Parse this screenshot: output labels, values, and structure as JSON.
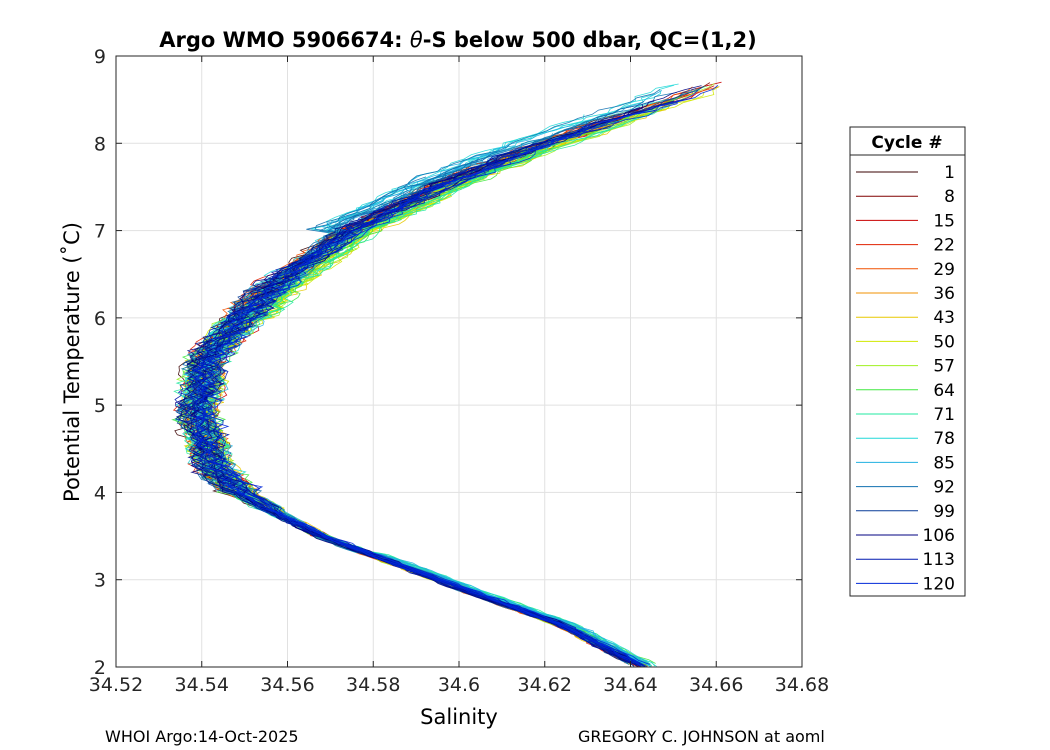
{
  "chart_data": {
    "type": "line",
    "title_prefix": "Argo WMO 5906674: ",
    "title_theta": "θ",
    "title_suffix": "-S below 500 dbar,  QC=(1,2)",
    "xlabel": "Salinity",
    "ylabel": "Potential Temperature (˚C)",
    "xlim": [
      34.52,
      34.68
    ],
    "ylim": [
      2,
      9
    ],
    "xticks": [
      34.52,
      34.54,
      34.56,
      34.58,
      34.6,
      34.62,
      34.64,
      34.66,
      34.68
    ],
    "xtick_labels": [
      "34.52",
      "34.54",
      "34.56",
      "34.58",
      "34.6",
      "34.62",
      "34.64",
      "34.66",
      "34.68"
    ],
    "yticks": [
      2,
      3,
      4,
      5,
      6,
      7,
      8,
      9
    ],
    "ytick_labels": [
      "2",
      "3",
      "4",
      "5",
      "6",
      "7",
      "8",
      "9"
    ],
    "grid": true,
    "legend_title": "Cycle #",
    "legend_position": "right",
    "legend_entries": [
      {
        "label": "1",
        "color": "#3a0000"
      },
      {
        "label": "8",
        "color": "#800000"
      },
      {
        "label": "15",
        "color": "#c80000"
      },
      {
        "label": "22",
        "color": "#e02000"
      },
      {
        "label": "29",
        "color": "#f05000"
      },
      {
        "label": "36",
        "color": "#f09000"
      },
      {
        "label": "43",
        "color": "#e8c800"
      },
      {
        "label": "50",
        "color": "#d0e800"
      },
      {
        "label": "57",
        "color": "#a0f020"
      },
      {
        "label": "64",
        "color": "#40e840"
      },
      {
        "label": "71",
        "color": "#20e8a0"
      },
      {
        "label": "78",
        "color": "#20d8d8"
      },
      {
        "label": "85",
        "color": "#20b0e0"
      },
      {
        "label": "92",
        "color": "#1070b0"
      },
      {
        "label": "99",
        "color": "#083c98"
      },
      {
        "label": "106",
        "color": "#000080"
      },
      {
        "label": "113",
        "color": "#0018b0"
      },
      {
        "label": "120",
        "color": "#0028d8"
      }
    ],
    "series_description": "theta-S profiles for each cycle below 500 dbar",
    "mean_curve": {
      "theta": [
        2.0,
        2.5,
        3.0,
        3.5,
        3.8,
        4.0,
        4.3,
        4.5,
        5.0,
        5.5,
        6.0,
        6.5,
        7.0,
        7.5,
        8.0,
        8.5,
        8.7
      ],
      "salinity": [
        34.643,
        34.623,
        34.595,
        34.568,
        34.556,
        34.549,
        34.543,
        34.541,
        34.539,
        34.541,
        34.549,
        34.56,
        34.575,
        34.595,
        34.62,
        34.65,
        34.66
      ]
    }
  },
  "footer": {
    "left": "WHOI Argo:14-Oct-2025",
    "right": "GREGORY C. JOHNSON at aoml"
  }
}
